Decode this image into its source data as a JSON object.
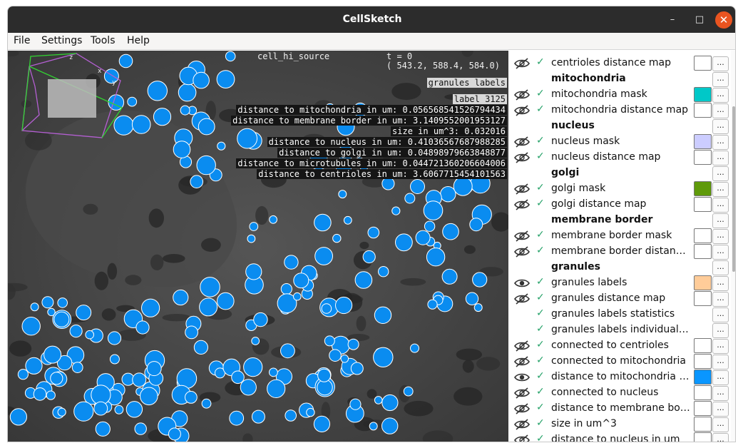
{
  "window": {
    "title": "CellSketch",
    "minimize_glyph": "–",
    "maximize_glyph": "□",
    "close_glyph": "✕"
  },
  "menu": [
    "File",
    "Settings",
    "Tools",
    "Help"
  ],
  "viewer": {
    "source_name": "cell_hi_source",
    "time": "t = 0",
    "coordinates": "( 543.2, 588.4, 584.0)",
    "dataset_label": "granules labels",
    "label_id": "label 3125",
    "measurements": [
      "distance to mitochondria in um: 0.056568541526794434",
      "distance to membrane border in um: 3.1409552001953127",
      "size in um^3: 0.032016",
      "distance to nucleus in um: 0.41036567687988285",
      "distance to golgi in um: 0.04898979663848877",
      "distance to microtubules in um: 0.044721360206604006",
      "distance to centrioles in um: 3.6067715454101563"
    ],
    "axis_labels": [
      "z",
      "x",
      "y"
    ]
  },
  "sidebar": {
    "items": [
      {
        "name": "centrioles distance map",
        "type": "item",
        "eye": "hidden",
        "check": true,
        "swatch": "#ffffff"
      },
      {
        "name": "mitochondria",
        "type": "header"
      },
      {
        "name": "mitochondria mask",
        "type": "item",
        "eye": "hidden",
        "check": true,
        "swatch": "#00c8c8"
      },
      {
        "name": "mitochondria distance map",
        "type": "item",
        "eye": "hidden",
        "check": true,
        "swatch": "#ffffff"
      },
      {
        "name": "nucleus",
        "type": "header"
      },
      {
        "name": "nucleus mask",
        "type": "item",
        "eye": "hidden",
        "check": true,
        "swatch": "#cccdff"
      },
      {
        "name": "nucleus distance map",
        "type": "item",
        "eye": "hidden",
        "check": true,
        "swatch": "#ffffff"
      },
      {
        "name": "golgi",
        "type": "header"
      },
      {
        "name": "golgi mask",
        "type": "item",
        "eye": "hidden",
        "check": true,
        "swatch": "#5f9a0a"
      },
      {
        "name": "golgi distance map",
        "type": "item",
        "eye": "hidden",
        "check": true,
        "swatch": "#ffffff"
      },
      {
        "name": "membrane border",
        "type": "header"
      },
      {
        "name": "membrane border mask",
        "type": "item",
        "eye": "hidden",
        "check": true,
        "swatch": "#ffffff"
      },
      {
        "name": "membrane border distance ...",
        "type": "item",
        "eye": "hidden",
        "check": true,
        "swatch": "#ffffff"
      },
      {
        "name": "granules",
        "type": "header"
      },
      {
        "name": "granules labels",
        "type": "item",
        "eye": "visible",
        "check": true,
        "swatch": "#ffcc99"
      },
      {
        "name": "granules distance map",
        "type": "item",
        "eye": "hidden",
        "check": true,
        "swatch": "#ffffff"
      },
      {
        "name": "granules labels statistics",
        "type": "item",
        "eye": "none",
        "check": true,
        "swatch": null
      },
      {
        "name": "granules labels individual sta...",
        "type": "item",
        "eye": "none",
        "check": true,
        "swatch": null
      },
      {
        "name": "connected to centrioles",
        "type": "item",
        "eye": "hidden",
        "check": true,
        "swatch": "#ffffff"
      },
      {
        "name": "connected to mitochondria",
        "type": "item",
        "eye": "hidden",
        "check": true,
        "swatch": "#ffffff"
      },
      {
        "name": "distance to mitochondria in ...",
        "type": "item",
        "eye": "visible",
        "check": true,
        "swatch": "#0a96ff"
      },
      {
        "name": "connected to nucleus",
        "type": "item",
        "eye": "hidden",
        "check": true,
        "swatch": "#ffffff"
      },
      {
        "name": "distance to membrane bord...",
        "type": "item",
        "eye": "hidden",
        "check": true,
        "swatch": "#ffffff"
      },
      {
        "name": "size in um^3",
        "type": "item",
        "eye": "hidden",
        "check": true,
        "swatch": "#ffffff"
      },
      {
        "name": "distance to nucleus in um",
        "type": "item",
        "eye": "hidden",
        "check": true,
        "swatch": "#ffffff"
      }
    ],
    "check_glyph": "✓",
    "dots_label": "..."
  },
  "colors": {
    "granule_fill": "#0a8cf0",
    "granule_outline": "#ffffff",
    "check": "#26a269"
  }
}
